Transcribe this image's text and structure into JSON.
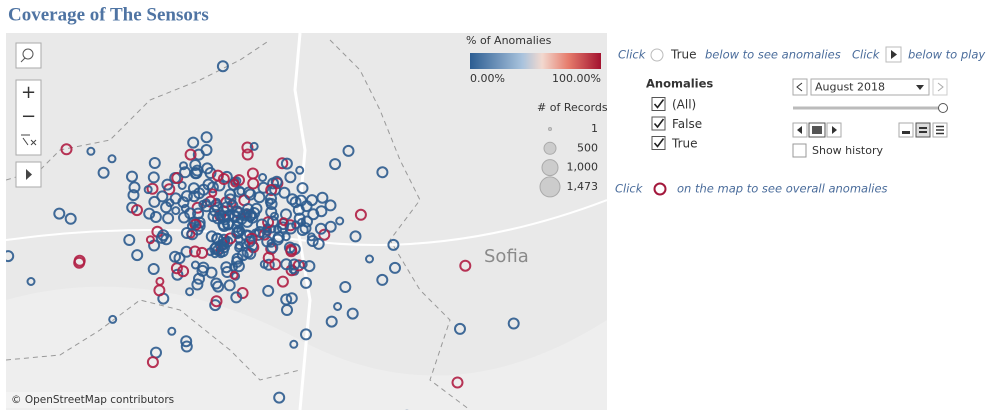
{
  "header": {
    "title": "Coverage of The Sensors"
  },
  "map": {
    "place_label": "Sofia",
    "attribution": "© OpenStreetMap contributors",
    "color_legend": {
      "title": "% of Anomalies",
      "min_label": "0.00%",
      "max_label": "100.00%"
    },
    "size_legend": {
      "title": "# of Records",
      "labels": [
        "1",
        "500",
        "1,000",
        "1,473"
      ]
    }
  },
  "instructions": {
    "anomalies": {
      "click": "Click",
      "option": "True",
      "text": "below to see anomalies"
    },
    "play": {
      "click": "Click",
      "text": "below to play"
    },
    "overall": {
      "click": "Click",
      "text": "on the map to see overall anomalies"
    }
  },
  "filter": {
    "title": "Anomalies",
    "options": [
      "(All)",
      "False",
      "True"
    ]
  },
  "page_control": {
    "current": "August 2018",
    "show_history": "Show history"
  }
}
